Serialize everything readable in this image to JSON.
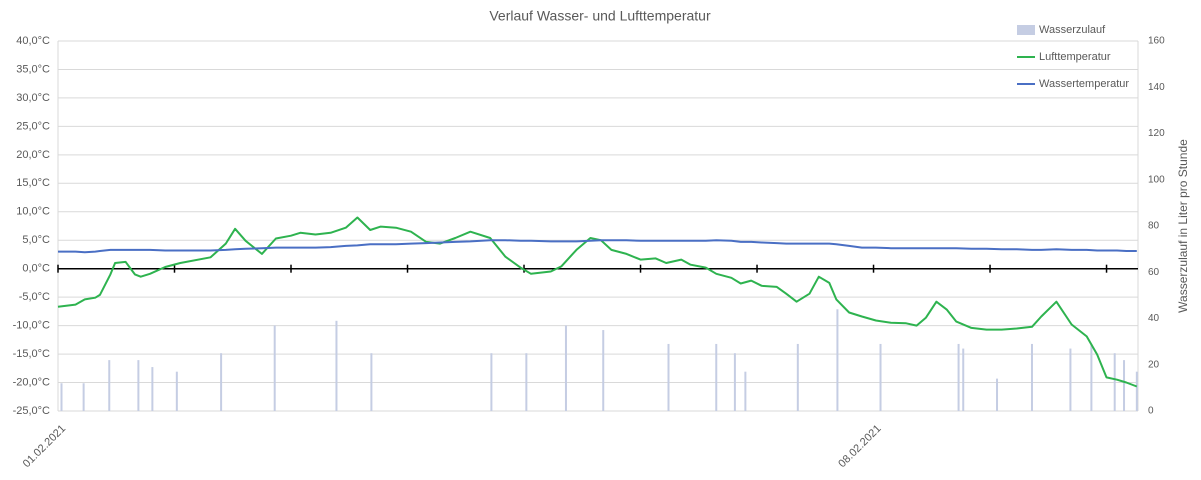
{
  "chart_data": {
    "type": "combo",
    "title": "Verlauf Wasser- und Lufttemperatur",
    "y2label": "Wasserzulauf in Liter pro Stunde",
    "xlim": [
      0,
      9.27
    ],
    "xticks": [
      {
        "value": 0,
        "label": "01.02.2021"
      },
      {
        "value": 1,
        "label": null
      },
      {
        "value": 2,
        "label": null
      },
      {
        "value": 3,
        "label": null
      },
      {
        "value": 4,
        "label": null
      },
      {
        "value": 5,
        "label": null
      },
      {
        "value": 6,
        "label": null
      },
      {
        "value": 7,
        "label": "08.02.2021"
      },
      {
        "value": 8,
        "label": null
      },
      {
        "value": 9,
        "label": null
      }
    ],
    "ylim": [
      -25,
      40
    ],
    "yticks": [
      {
        "value": -25,
        "label": "-25,0°C"
      },
      {
        "value": -20,
        "label": "-20,0°C"
      },
      {
        "value": -15,
        "label": "-15,0°C"
      },
      {
        "value": -10,
        "label": "-10,0°C"
      },
      {
        "value": -5,
        "label": "-5,0°C"
      },
      {
        "value": 0,
        "label": "0,0°C"
      },
      {
        "value": 5,
        "label": "5,0°C"
      },
      {
        "value": 10,
        "label": "10,0°C"
      },
      {
        "value": 15,
        "label": "15,0°C"
      },
      {
        "value": 20,
        "label": "20,0°C"
      },
      {
        "value": 25,
        "label": "25,0°C"
      },
      {
        "value": 30,
        "label": "30,0°C"
      },
      {
        "value": 35,
        "label": "35,0°C"
      },
      {
        "value": 40,
        "label": "40,0°C"
      }
    ],
    "y2lim": [
      0,
      160
    ],
    "y2ticks": [
      0,
      20,
      40,
      60,
      80,
      100,
      120,
      140,
      160
    ],
    "grid": true,
    "legend": "top-right",
    "series": [
      {
        "name": "Wasserzulauf",
        "type": "bar",
        "axis": "y2",
        "color": "#c5cde3",
        "x": [
          0.03,
          0.22,
          0.44,
          0.69,
          0.81,
          1.02,
          1.4,
          1.86,
          2.39,
          2.69,
          3.72,
          4.02,
          4.36,
          4.68,
          5.24,
          5.65,
          5.81,
          5.9,
          6.35,
          6.69,
          7.06,
          7.73,
          7.77,
          8.06,
          8.36,
          8.69,
          8.87,
          9.07,
          9.15,
          9.26
        ],
        "values": [
          12,
          12,
          22,
          22,
          19,
          17,
          25,
          37,
          39,
          25,
          25,
          25,
          37,
          35,
          29,
          29,
          25,
          17,
          29,
          44,
          29,
          29,
          27,
          14,
          29,
          27,
          29,
          25,
          22,
          17
        ]
      },
      {
        "name": "Lufttemperatur",
        "type": "line",
        "color": "#2eb34f",
        "x": [
          0,
          0.15,
          0.23,
          0.32,
          0.36,
          0.45,
          0.49,
          0.58,
          0.66,
          0.71,
          0.79,
          0.92,
          1.05,
          1.31,
          1.44,
          1.52,
          1.61,
          1.75,
          1.87,
          2.0,
          2.08,
          2.21,
          2.34,
          2.47,
          2.57,
          2.68,
          2.77,
          2.9,
          3.03,
          3.16,
          3.28,
          3.41,
          3.54,
          3.71,
          3.84,
          3.97,
          4.06,
          4.23,
          4.32,
          4.45,
          4.57,
          4.66,
          4.75,
          4.88,
          5.0,
          5.13,
          5.22,
          5.35,
          5.43,
          5.56,
          5.65,
          5.78,
          5.86,
          5.95,
          6.04,
          6.17,
          6.25,
          6.34,
          6.45,
          6.53,
          6.62,
          6.68,
          6.79,
          6.9,
          7.02,
          7.15,
          7.28,
          7.37,
          7.45,
          7.54,
          7.63,
          7.71,
          7.84,
          7.97,
          8.1,
          8.23,
          8.36,
          8.44,
          8.57,
          8.7,
          8.83,
          8.92,
          9.0,
          9.09,
          9.17,
          9.26
        ],
        "values": [
          -6.7,
          -6.3,
          -5.4,
          -5.1,
          -4.6,
          -1,
          1,
          1.2,
          -1,
          -1.4,
          -0.9,
          0.3,
          1,
          2,
          4.4,
          7,
          4.9,
          2.6,
          5.3,
          5.8,
          6.3,
          6,
          6.3,
          7.2,
          9,
          6.8,
          7.4,
          7.2,
          6.5,
          4.7,
          4.4,
          5.4,
          6.5,
          5.4,
          2.1,
          0.2,
          -0.9,
          -0.5,
          0.4,
          3.3,
          5.4,
          5,
          3.3,
          2.6,
          1.6,
          1.8,
          1,
          1.6,
          0.7,
          0.2,
          -0.9,
          -1.6,
          -2.6,
          -2.1,
          -3,
          -3.2,
          -4.4,
          -5.8,
          -4.4,
          -1.4,
          -2.5,
          -5.4,
          -7.7,
          -8.4,
          -9.1,
          -9.5,
          -9.6,
          -10,
          -8.6,
          -5.8,
          -7.2,
          -9.3,
          -10.4,
          -10.7,
          -10.7,
          -10.5,
          -10.2,
          -8.4,
          -5.8,
          -9.8,
          -11.9,
          -15.1,
          -19.1,
          -19.5,
          -20,
          -20.7
        ]
      },
      {
        "name": "Wassertemperatur",
        "type": "line",
        "color": "#4a6fc4",
        "x": [
          0,
          0.15,
          0.23,
          0.32,
          0.36,
          0.45,
          0.49,
          0.58,
          0.66,
          0.71,
          0.79,
          0.92,
          1.05,
          1.31,
          1.44,
          1.52,
          1.61,
          1.75,
          1.87,
          2.0,
          2.08,
          2.21,
          2.34,
          2.47,
          2.57,
          2.68,
          2.77,
          2.9,
          3.03,
          3.16,
          3.28,
          3.41,
          3.54,
          3.71,
          3.84,
          3.97,
          4.06,
          4.23,
          4.32,
          4.45,
          4.57,
          4.66,
          4.75,
          4.88,
          5.0,
          5.13,
          5.22,
          5.35,
          5.43,
          5.56,
          5.65,
          5.78,
          5.86,
          5.95,
          6.04,
          6.17,
          6.25,
          6.34,
          6.45,
          6.53,
          6.62,
          6.68,
          6.79,
          6.9,
          7.02,
          7.15,
          7.28,
          7.37,
          7.45,
          7.54,
          7.63,
          7.71,
          7.84,
          7.97,
          8.1,
          8.23,
          8.36,
          8.44,
          8.57,
          8.7,
          8.83,
          8.92,
          9.0,
          9.09,
          9.17,
          9.26
        ],
        "values": [
          3.0,
          3.0,
          2.9,
          3.0,
          3.1,
          3.3,
          3.3,
          3.3,
          3.3,
          3.3,
          3.3,
          3.2,
          3.2,
          3.2,
          3.3,
          3.4,
          3.5,
          3.6,
          3.7,
          3.7,
          3.7,
          3.7,
          3.8,
          4.0,
          4.1,
          4.3,
          4.3,
          4.3,
          4.4,
          4.5,
          4.6,
          4.7,
          4.8,
          5.0,
          5.0,
          4.9,
          4.9,
          4.8,
          4.8,
          4.8,
          4.9,
          5.0,
          5.0,
          5.0,
          4.9,
          4.9,
          4.9,
          4.9,
          4.9,
          4.9,
          5.0,
          4.9,
          4.7,
          4.7,
          4.6,
          4.5,
          4.4,
          4.4,
          4.4,
          4.4,
          4.4,
          4.3,
          4.0,
          3.7,
          3.7,
          3.6,
          3.6,
          3.6,
          3.6,
          3.6,
          3.6,
          3.6,
          3.5,
          3.5,
          3.4,
          3.4,
          3.3,
          3.3,
          3.4,
          3.3,
          3.3,
          3.2,
          3.2,
          3.2,
          3.1,
          3.1
        ]
      }
    ]
  }
}
